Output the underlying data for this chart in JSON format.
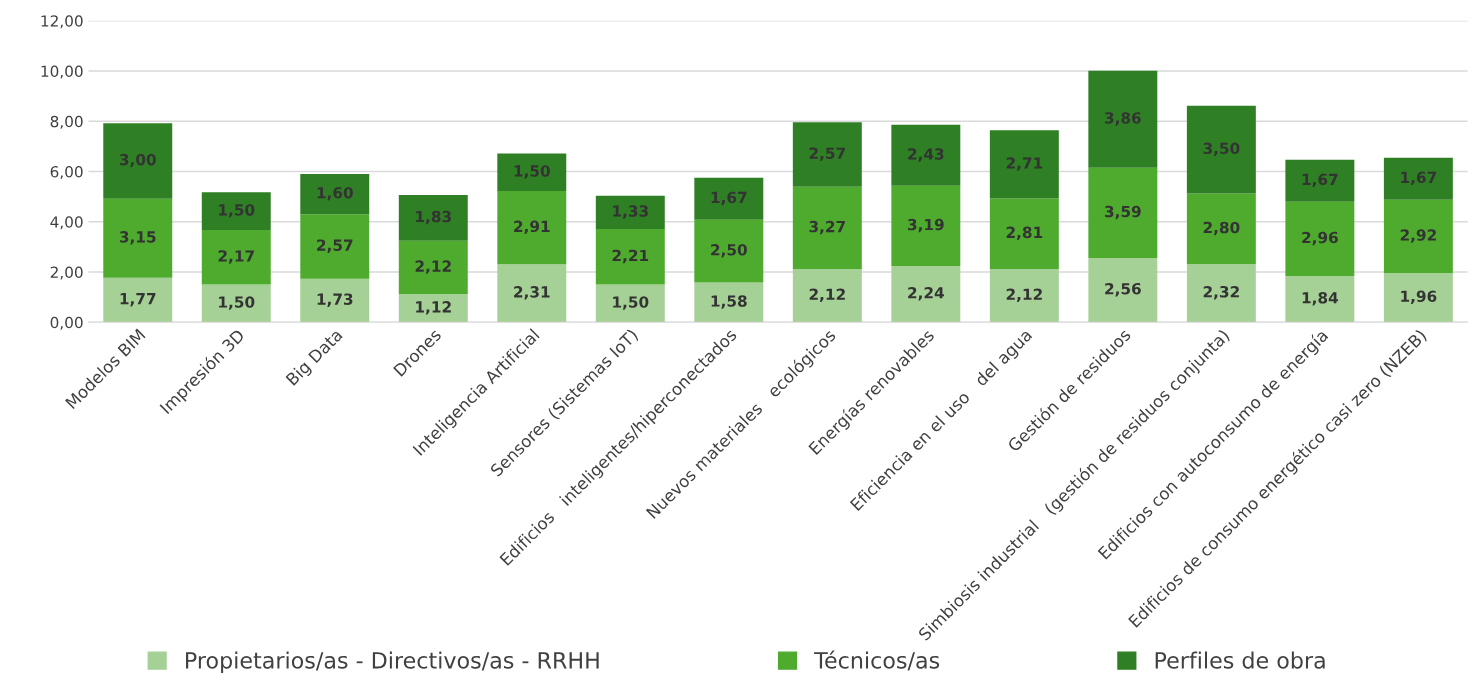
{
  "chart_data": {
    "type": "bar",
    "stacked": true,
    "categories": [
      "Modelos BIM",
      "Impresión 3D",
      "Big Data",
      "Drones",
      "Inteligencia Artificial",
      "Sensores (Sistemas IoT)",
      "Edificios   inteligentes/hiperconectados",
      "Nuevos materiales   ecológicos",
      "Energías renovables",
      "Eficiencia en el uso   del agua",
      "Gestión de residuos",
      "Simbiosis industrial   (gestión de residuos conjunta)",
      "Edificios con autoconsumo de energía",
      "Edificios de consumo energético casi zero (NZEB)"
    ],
    "series": [
      {
        "name": "Propietarios/as - Directivos/as - RRHH",
        "color": "#a6d196",
        "values": [
          1.77,
          1.5,
          1.73,
          1.12,
          2.31,
          1.5,
          1.58,
          2.12,
          2.24,
          2.12,
          2.56,
          2.32,
          1.84,
          1.96
        ],
        "value_labels": [
          "1,77",
          "1,50",
          "1,73",
          "1,12",
          "2,31",
          "1,50",
          "1,58",
          "2,12",
          "2,24",
          "2,12",
          "2,56",
          "2,32",
          "1,84",
          "1,96"
        ]
      },
      {
        "name": "Técnicos/as",
        "color": "#4eab2e",
        "values": [
          3.15,
          2.17,
          2.57,
          2.12,
          2.91,
          2.21,
          2.5,
          3.27,
          3.19,
          2.81,
          3.59,
          2.8,
          2.96,
          2.92
        ],
        "value_labels": [
          "3,15",
          "2,17",
          "2,57",
          "2,12",
          "2,91",
          "2,21",
          "2,50",
          "3,27",
          "3,19",
          "2,81",
          "3,59",
          "2,80",
          "2,96",
          "2,92"
        ]
      },
      {
        "name": "Perfiles de obra",
        "color": "#2f7f24",
        "values": [
          3.0,
          1.5,
          1.6,
          1.83,
          1.5,
          1.33,
          1.67,
          2.57,
          2.43,
          2.71,
          3.86,
          3.5,
          1.67,
          1.67
        ],
        "value_labels": [
          "3,00",
          "1,50",
          "1,60",
          "1,83",
          "1,50",
          "1,33",
          "1,67",
          "2,57",
          "2,43",
          "2,71",
          "3,86",
          "3,50",
          "1,67",
          "1,67"
        ]
      }
    ],
    "ylim": [
      0,
      12
    ],
    "yticks": [
      {
        "value": 0,
        "label": "0,00"
      },
      {
        "value": 2,
        "label": "2,00"
      },
      {
        "value": 4,
        "label": "4,00"
      },
      {
        "value": 6,
        "label": "6,00"
      },
      {
        "value": 8,
        "label": "8,00"
      },
      {
        "value": 10,
        "label": "10,00"
      },
      {
        "value": 12,
        "label": "12,00"
      }
    ],
    "grid": "y",
    "legend": "bottom"
  }
}
